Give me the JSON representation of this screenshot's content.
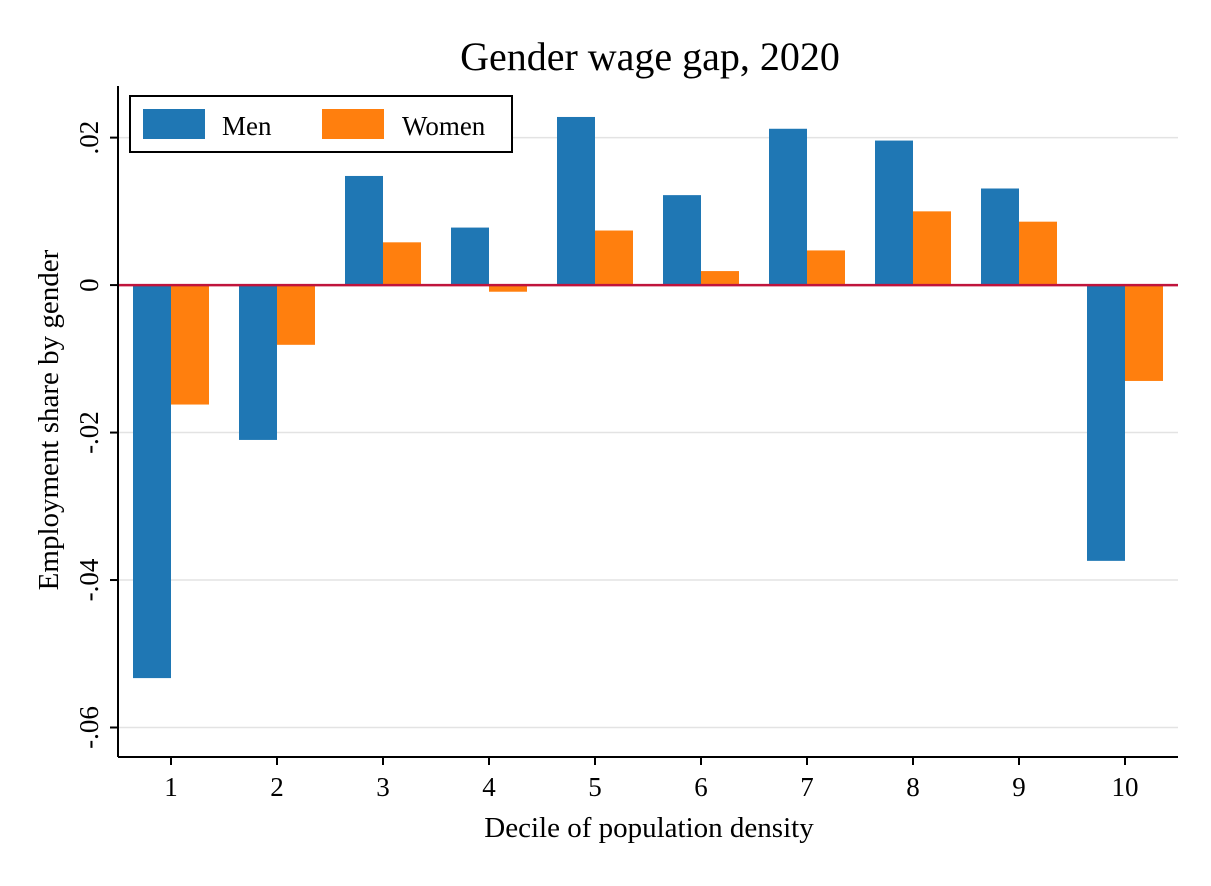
{
  "chart_data": {
    "type": "bar",
    "title": "Gender wage gap, 2020",
    "xlabel": "Decile of population density",
    "ylabel": "Employment share by gender",
    "categories": [
      "1",
      "2",
      "3",
      "4",
      "5",
      "6",
      "7",
      "8",
      "9",
      "10"
    ],
    "series": [
      {
        "name": "Men",
        "color": "#1f77b4",
        "values": [
          -0.0533,
          -0.021,
          0.0148,
          0.0078,
          0.0228,
          0.0122,
          0.0212,
          0.0196,
          0.0131,
          -0.0374
        ]
      },
      {
        "name": "Women",
        "color": "#ff7f0e",
        "values": [
          -0.0162,
          -0.0081,
          0.0058,
          -0.0009,
          0.0074,
          0.0019,
          0.0047,
          0.01,
          0.0086,
          -0.013
        ]
      }
    ],
    "ylim": [
      -0.064,
      0.027
    ],
    "yticks": [
      {
        "value": 0.02,
        "label": ".02"
      },
      {
        "value": 0,
        "label": "0"
      },
      {
        "value": -0.02,
        "label": "-.02"
      },
      {
        "value": -0.04,
        "label": "-.04"
      },
      {
        "value": -0.06,
        "label": "-.06"
      }
    ],
    "grid": true,
    "reference_line": {
      "value": 0,
      "color": "#c0143c"
    },
    "legend_position": "top-left"
  }
}
